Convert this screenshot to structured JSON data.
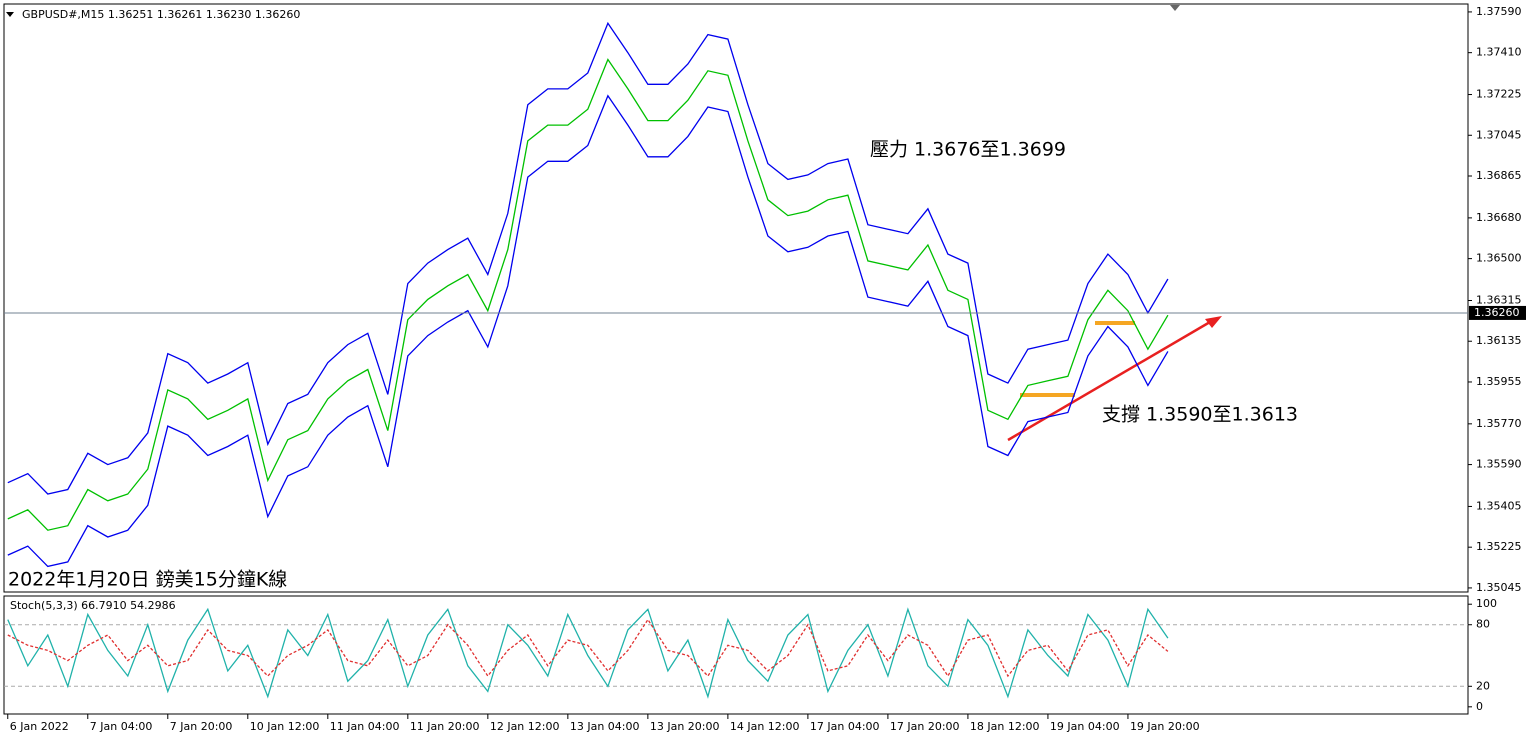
{
  "chart_data": [
    {
      "type": "line",
      "title": "GBPUSD#,M15  1.36251 1.36261 1.36230 1.36260",
      "annotations": [
        "壓力 1.3676至1.3699",
        "支撐 1.3590至1.3613",
        "2022年1月20日 鎊美15分鐘K線"
      ],
      "current_price": {
        "value": 1.3626,
        "label": "1.36260"
      },
      "x": [
        0,
        16,
        32,
        48,
        64,
        80,
        96,
        112,
        128,
        144,
        160,
        176,
        192,
        208,
        224,
        240,
        256,
        272,
        288,
        304,
        320,
        336,
        352,
        368,
        384,
        400,
        416,
        432,
        448,
        464,
        480,
        496,
        512,
        528,
        544,
        560,
        576,
        592,
        608,
        624,
        640,
        656,
        672,
        688,
        704,
        720,
        736,
        752,
        768,
        784,
        800,
        816,
        832,
        848,
        864,
        880,
        896,
        912,
        928
      ],
      "xlim": [
        -3,
        1168
      ],
      "xticks": [
        {
          "value": 0,
          "label": "6 Jan 2022"
        },
        {
          "value": 64,
          "label": "7 Jan 04:00"
        },
        {
          "value": 128,
          "label": "7 Jan 20:00"
        },
        {
          "value": 192,
          "label": "10 Jan 12:00"
        },
        {
          "value": 256,
          "label": "11 Jan 04:00"
        },
        {
          "value": 320,
          "label": "11 Jan 20:00"
        },
        {
          "value": 384,
          "label": "12 Jan 12:00"
        },
        {
          "value": 448,
          "label": "13 Jan 04:00"
        },
        {
          "value": 512,
          "label": "13 Jan 20:00"
        },
        {
          "value": 576,
          "label": "14 Jan 12:00"
        },
        {
          "value": 640,
          "label": "17 Jan 04:00"
        },
        {
          "value": 704,
          "label": "17 Jan 20:00"
        },
        {
          "value": 768,
          "label": "18 Jan 12:00"
        },
        {
          "value": 832,
          "label": "19 Jan 04:00"
        },
        {
          "value": 896,
          "label": "19 Jan 20:00"
        }
      ],
      "ylim": [
        1.35027,
        1.37625
      ],
      "yticks": [
        {
          "value": 1.3759,
          "label": "1.37590"
        },
        {
          "value": 1.3741,
          "label": "1.37410"
        },
        {
          "value": 1.37225,
          "label": "1.37225"
        },
        {
          "value": 1.37045,
          "label": "1.37045"
        },
        {
          "value": 1.36865,
          "label": "1.36865"
        },
        {
          "value": 1.3668,
          "label": "1.36680"
        },
        {
          "value": 1.365,
          "label": "1.36500"
        },
        {
          "value": 1.36315,
          "label": "1.36315"
        },
        {
          "value": 1.36135,
          "label": "1.36135"
        },
        {
          "value": 1.35955,
          "label": "1.35955"
        },
        {
          "value": 1.3577,
          "label": "1.35770"
        },
        {
          "value": 1.3559,
          "label": "1.35590"
        },
        {
          "value": 1.35405,
          "label": "1.35405"
        },
        {
          "value": 1.35225,
          "label": "1.35225"
        },
        {
          "value": 1.35045,
          "label": "1.35045"
        }
      ],
      "series": [
        {
          "color": "#0000ee",
          "values": [
            1.3551,
            1.3555,
            1.3546,
            1.3548,
            1.3564,
            1.3559,
            1.3562,
            1.3573,
            1.3608,
            1.3604,
            1.3595,
            1.3599,
            1.3604,
            1.3568,
            1.3586,
            1.359,
            1.3604,
            1.3612,
            1.3617,
            1.359,
            1.3639,
            1.3648,
            1.3654,
            1.3659,
            1.3643,
            1.367,
            1.3718,
            1.3725,
            1.3725,
            1.3732,
            1.3754,
            1.3741,
            1.3727,
            1.3727,
            1.3736,
            1.3749,
            1.3747,
            1.3718,
            1.3692,
            1.3685,
            1.3687,
            1.3692,
            1.3694,
            1.3665,
            1.3663,
            1.3661,
            1.3672,
            1.3652,
            1.3648,
            1.3599,
            1.3595,
            1.361,
            1.3612,
            1.3614,
            1.3639,
            1.3652,
            1.3643,
            1.3626,
            1.3641
          ]
        },
        {
          "color": "#00c000",
          "values": [
            1.3535,
            1.3539,
            1.353,
            1.3532,
            1.3548,
            1.3543,
            1.3546,
            1.3557,
            1.3592,
            1.3588,
            1.3579,
            1.3583,
            1.3588,
            1.3552,
            1.357,
            1.3574,
            1.3588,
            1.3596,
            1.3601,
            1.3574,
            1.3623,
            1.3632,
            1.3638,
            1.3643,
            1.3627,
            1.3654,
            1.3702,
            1.3709,
            1.3709,
            1.3716,
            1.3738,
            1.3725,
            1.3711,
            1.3711,
            1.372,
            1.3733,
            1.3731,
            1.3702,
            1.3676,
            1.3669,
            1.3671,
            1.3676,
            1.3678,
            1.3649,
            1.3647,
            1.3645,
            1.3656,
            1.3636,
            1.3632,
            1.3583,
            1.3579,
            1.3594,
            1.3596,
            1.3598,
            1.3623,
            1.3636,
            1.3627,
            1.361,
            1.3625
          ]
        },
        {
          "color": "#0000ee",
          "values": [
            1.3519,
            1.3523,
            1.3514,
            1.3516,
            1.3532,
            1.3527,
            1.353,
            1.3541,
            1.3576,
            1.3572,
            1.3563,
            1.3567,
            1.3572,
            1.3536,
            1.3554,
            1.3558,
            1.3572,
            1.358,
            1.3585,
            1.3558,
            1.3607,
            1.3616,
            1.3622,
            1.3627,
            1.3611,
            1.3638,
            1.3686,
            1.3693,
            1.3693,
            1.37,
            1.3722,
            1.3709,
            1.3695,
            1.3695,
            1.3704,
            1.3717,
            1.3715,
            1.3686,
            1.366,
            1.3653,
            1.3655,
            1.366,
            1.3662,
            1.3633,
            1.3631,
            1.3629,
            1.364,
            1.362,
            1.3616,
            1.3567,
            1.3563,
            1.3578,
            1.358,
            1.3582,
            1.3607,
            1.362,
            1.3611,
            1.3594,
            1.3609
          ]
        }
      ]
    },
    {
      "type": "line",
      "title": "Stoch(5,3,3) 66.7910 54.2986",
      "ylim": [
        -7,
        108
      ],
      "yticks": [
        0,
        20,
        80,
        100
      ],
      "series": [
        {
          "color": "#20b2aa",
          "values": [
            85,
            40,
            70,
            20,
            90,
            55,
            30,
            80,
            15,
            65,
            95,
            35,
            60,
            10,
            75,
            50,
            90,
            25,
            45,
            85,
            20,
            70,
            95,
            40,
            15,
            80,
            60,
            30,
            90,
            50,
            20,
            75,
            95,
            35,
            65,
            10,
            85,
            45,
            25,
            70,
            90,
            15,
            55,
            80,
            30,
            95,
            40,
            20,
            85,
            60,
            10,
            75,
            50,
            30,
            90,
            65,
            20,
            95,
            67
          ]
        },
        {
          "color": "#e03030",
          "values": [
            70,
            60,
            55,
            45,
            60,
            70,
            45,
            60,
            40,
            45,
            75,
            55,
            50,
            30,
            50,
            60,
            75,
            45,
            40,
            65,
            40,
            50,
            80,
            60,
            30,
            55,
            70,
            40,
            65,
            60,
            35,
            55,
            85,
            55,
            50,
            30,
            60,
            55,
            35,
            50,
            80,
            35,
            40,
            70,
            45,
            70,
            60,
            30,
            65,
            70,
            30,
            55,
            60,
            35,
            70,
            75,
            40,
            70,
            54
          ]
        }
      ]
    }
  ]
}
